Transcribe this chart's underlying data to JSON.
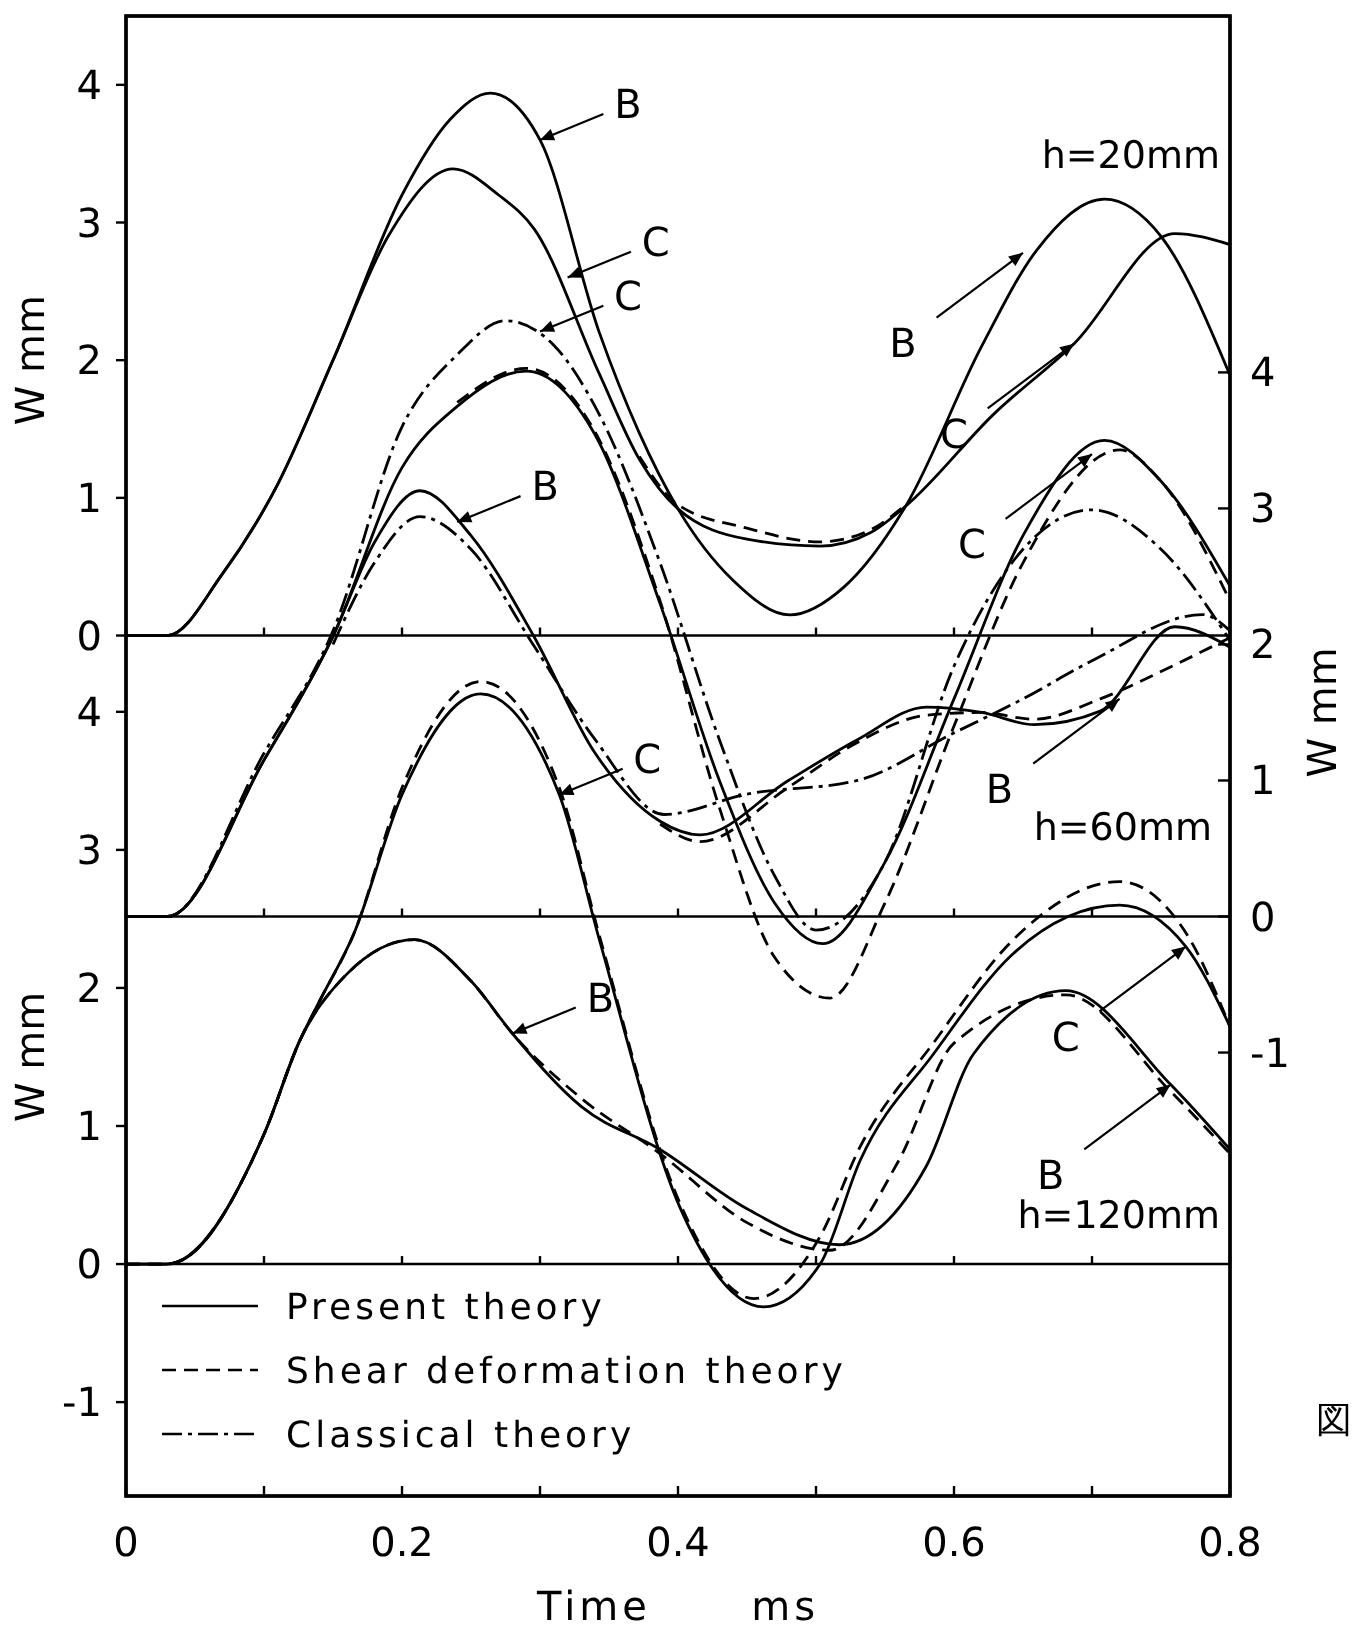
{
  "chart_data": [
    {
      "type": "line",
      "title": "h=20mm",
      "ylabel": "W mm",
      "xlim": [
        0,
        0.8
      ],
      "xticks": [
        0,
        {
          "value": 0.1,
          "label": null
        },
        0.2,
        {
          "value": 0.3,
          "label": null
        },
        0.4,
        {
          "value": 0.5,
          "label": null
        },
        0.6,
        {
          "value": 0.7,
          "label": null
        },
        0.8
      ],
      "ylim": [
        -6.25,
        4.5
      ],
      "yticks": [
        0,
        1,
        2,
        3,
        4
      ],
      "tick_labels": "y",
      "legend": false,
      "ref_lines": [
        {
          "axis": "y",
          "value": 0
        }
      ],
      "series": [
        {
          "color": "#000000",
          "line_style": "solid",
          "x": [
            0,
            0.03,
            0.07,
            0.11,
            0.15,
            0.2,
            0.235,
            0.264,
            0.3,
            0.343,
            0.372,
            0.4,
            0.44,
            0.481,
            0.52,
            0.565,
            0.62,
            0.66,
            0.709,
            0.75,
            0.8
          ],
          "values": [
            0,
            0,
            0.45,
            1.1,
            2.0,
            3.2,
            3.75,
            3.94,
            3.6,
            2.2,
            1.47,
            0.92,
            0.4,
            0.15,
            0.35,
            0.94,
            2.1,
            2.8,
            3.17,
            2.9,
            1.89
          ]
        },
        {
          "color": "#000000",
          "line_style": "solid",
          "x": [
            0,
            0.03,
            0.07,
            0.11,
            0.15,
            0.19,
            0.237,
            0.27,
            0.296,
            0.343,
            0.372,
            0.4,
            0.45,
            0.503,
            0.54,
            0.565,
            0.629,
            0.687,
            0.76,
            0.8
          ],
          "values": [
            0,
            0,
            0.45,
            1.1,
            2.0,
            2.9,
            3.39,
            3.2,
            2.95,
            1.9,
            1.28,
            0.92,
            0.7,
            0.65,
            0.75,
            0.94,
            1.61,
            2.12,
            2.92,
            2.84
          ]
        },
        {
          "color": "#000000",
          "line_style": "dashed",
          "x": [
            0.372,
            0.4,
            0.45,
            0.503,
            0.54,
            0.565
          ],
          "values": [
            1.3,
            0.95,
            0.78,
            0.68,
            0.77,
            0.95
          ]
        }
      ],
      "annotations": [
        {
          "text": "B",
          "x": 0.3,
          "y": 3.6
        },
        {
          "text": "C",
          "x": 0.32,
          "y": 2.6
        },
        {
          "text": "B",
          "x": 0.65,
          "y": 2.78
        },
        {
          "text": "C",
          "x": 0.687,
          "y": 2.12
        }
      ]
    },
    {
      "type": "line",
      "title": "h=60mm",
      "ylabel": "W mm",
      "xlim": [
        0,
        0.8
      ],
      "xticks": [
        0,
        {
          "value": 0.1,
          "label": null
        },
        0.2,
        {
          "value": 0.3,
          "label": null
        },
        0.4,
        {
          "value": 0.5,
          "label": null
        },
        0.6,
        {
          "value": 0.7,
          "label": null
        },
        0.8
      ],
      "ylim": [
        -4.26,
        6.62
      ],
      "yticks": [
        -1,
        0,
        1,
        2,
        3,
        4
      ],
      "tick_labels": "y",
      "legend": false,
      "ref_lines": [
        {
          "axis": "y",
          "value": 0
        }
      ],
      "series": [
        {
          "color": "#000000",
          "line_style": "solid",
          "x": [
            0,
            0.03,
            0.1,
            0.15,
            0.2,
            0.24,
            0.29,
            0.34,
            0.387,
            0.43,
            0.47,
            0.505,
            0.55,
            0.6,
            0.65,
            0.709,
            0.75,
            0.8
          ],
          "values": [
            0,
            0,
            1.15,
            2.06,
            3.3,
            3.75,
            4.01,
            3.54,
            2.3,
            1.0,
            0.1,
            -0.2,
            0.4,
            1.6,
            2.8,
            3.5,
            3.2,
            2.43
          ]
        },
        {
          "color": "#000000",
          "line_style": "dashed",
          "x": [
            0.24,
            0.29,
            0.34,
            0.387,
            0.43,
            0.47,
            0.51,
            0.55,
            0.6,
            0.65,
            0.72,
            0.75,
            0.8
          ],
          "values": [
            3.78,
            4.03,
            3.56,
            2.32,
            0.8,
            -0.3,
            -0.6,
            0.1,
            1.4,
            2.6,
            3.43,
            3.2,
            2.32
          ]
        },
        {
          "name": "Classical theory",
          "color": "#000000",
          "line_style": "dashdot",
          "x": [
            0,
            0.03,
            0.1,
            0.15,
            0.2,
            0.24,
            0.275,
            0.31,
            0.343,
            0.387,
            0.43,
            0.47,
            0.5,
            0.55,
            0.6,
            0.65,
            0.7,
            0.75,
            0.8
          ],
          "values": [
            0,
            0,
            1.2,
            2.1,
            3.6,
            4.13,
            4.38,
            4.2,
            3.69,
            2.6,
            1.3,
            0.3,
            -0.1,
            0.4,
            1.84,
            2.7,
            2.99,
            2.7,
            2.03
          ]
        },
        {
          "color": "#000000",
          "line_style": "solid",
          "x": [
            0,
            0.03,
            0.1,
            0.15,
            0.18,
            0.213,
            0.25,
            0.295,
            0.34,
            0.387,
            0.416,
            0.48,
            0.53,
            0.58,
            0.62,
            0.658,
            0.706,
            0.76,
            0.8
          ],
          "values": [
            0,
            0,
            1.15,
            2.06,
            2.75,
            3.13,
            2.8,
            2.07,
            1.2,
            0.7,
            0.6,
            1.0,
            1.3,
            1.54,
            1.5,
            1.41,
            1.51,
            2.13,
            1.98
          ]
        },
        {
          "color": "#000000",
          "line_style": "dashed",
          "x": [
            0.387,
            0.416,
            0.48,
            0.53,
            0.58,
            0.62,
            0.658,
            0.706,
            0.76,
            0.8
          ],
          "values": [
            0.68,
            0.55,
            0.95,
            1.28,
            1.48,
            1.5,
            1.45,
            1.6,
            1.85,
            2.05
          ]
        },
        {
          "color": "#000000",
          "line_style": "dashdot",
          "x": [
            0.15,
            0.18,
            0.213,
            0.25,
            0.295,
            0.34,
            0.39,
            0.45,
            0.53,
            0.6,
            0.65,
            0.7,
            0.78,
            0.8
          ],
          "values": [
            2.0,
            2.6,
            2.94,
            2.7,
            2.0,
            1.3,
            0.75,
            0.9,
            1.0,
            1.35,
            1.6,
            1.88,
            2.22,
            2.1
          ]
        }
      ],
      "annotations": [
        {
          "text": "C",
          "x": 0.3,
          "y": 4.3
        },
        {
          "text": "B",
          "x": 0.24,
          "y": 2.9
        },
        {
          "text": "C",
          "x": 0.7,
          "y": 3.4
        },
        {
          "text": "B",
          "x": 0.72,
          "y": 1.6
        }
      ]
    },
    {
      "type": "line",
      "title": "h=120mm",
      "xlabel": "Time      ms",
      "ylabel": "W mm",
      "xlim": [
        0,
        0.8
      ],
      "xticks": [
        0,
        {
          "value": 0.1,
          "label": null
        },
        0.2,
        {
          "value": 0.3,
          "label": null
        },
        0.4,
        {
          "value": 0.5,
          "label": null
        },
        0.6,
        {
          "value": 0.7,
          "label": null
        },
        0.8
      ],
      "ylim": [
        -1.68,
        9.04
      ],
      "yticks": [
        -1,
        0,
        1,
        2,
        3,
        4
      ],
      "legend": "bottom left",
      "ref_lines": [
        {
          "axis": "y",
          "value": 0
        }
      ],
      "series": [
        {
          "name": "Present theory",
          "color": "#000000",
          "line_style": "solid",
          "x": [
            0,
            0.03,
            0.1,
            0.126,
            0.14,
            0.165,
            0.2,
            0.257,
            0.314,
            0.343,
            0.401,
            0.462,
            0.503,
            0.532,
            0.585,
            0.643,
            0.72,
            0.768,
            0.8
          ],
          "values": [
            0,
            0,
            0.94,
            1.62,
            1.9,
            2.39,
            3.4,
            4.13,
            3.4,
            2.35,
            0.42,
            -0.31,
            0,
            0.75,
            1.52,
            2.25,
            2.6,
            2.3,
            1.72
          ]
        },
        {
          "name": "Shear deformation theory",
          "color": "#000000",
          "line_style": "dashed",
          "x": [
            0,
            0.03,
            0.1,
            0.126,
            0.14,
            0.165,
            0.2,
            0.257,
            0.314,
            0.343,
            0.401,
            0.455,
            0.503,
            0.532,
            0.585,
            0.643,
            0.72,
            0.768,
            0.8
          ],
          "values": [
            0,
            0,
            0.94,
            1.62,
            1.9,
            2.39,
            3.45,
            4.22,
            3.45,
            2.38,
            0.45,
            -0.25,
            0.2,
            0.85,
            1.6,
            2.35,
            2.77,
            2.4,
            1.72
          ]
        },
        {
          "color": "#000000",
          "line_style": "solid",
          "x": [
            0,
            0.029,
            0.1,
            0.126,
            0.16,
            0.209,
            0.25,
            0.28,
            0.33,
            0.387,
            0.45,
            0.517,
            0.58,
            0.614,
            0.681,
            0.757,
            0.8
          ],
          "values": [
            0,
            0,
            0.94,
            1.62,
            2.1,
            2.35,
            2.05,
            1.67,
            1.14,
            0.83,
            0.4,
            0.14,
            0.71,
            1.52,
            1.98,
            1.3,
            0.83
          ]
        },
        {
          "color": "#000000",
          "line_style": "dashed",
          "x": [
            0,
            0.029,
            0.1,
            0.126,
            0.16,
            0.209,
            0.25,
            0.28,
            0.33,
            0.387,
            0.45,
            0.51,
            0.56,
            0.6,
            0.681,
            0.757,
            0.8
          ],
          "values": [
            0,
            0,
            0.94,
            1.62,
            2.1,
            2.35,
            2.05,
            1.67,
            1.2,
            0.8,
            0.3,
            0.1,
            0.75,
            1.6,
            1.95,
            1.25,
            0.8
          ]
        }
      ],
      "annotations": [
        {
          "text": "C",
          "x": 0.314,
          "y": 3.4
        },
        {
          "text": "B",
          "x": 0.28,
          "y": 1.67
        },
        {
          "text": "C",
          "x": 0.768,
          "y": 2.3
        },
        {
          "text": "B",
          "x": 0.757,
          "y": 1.3
        },
        "図"
      ]
    }
  ]
}
